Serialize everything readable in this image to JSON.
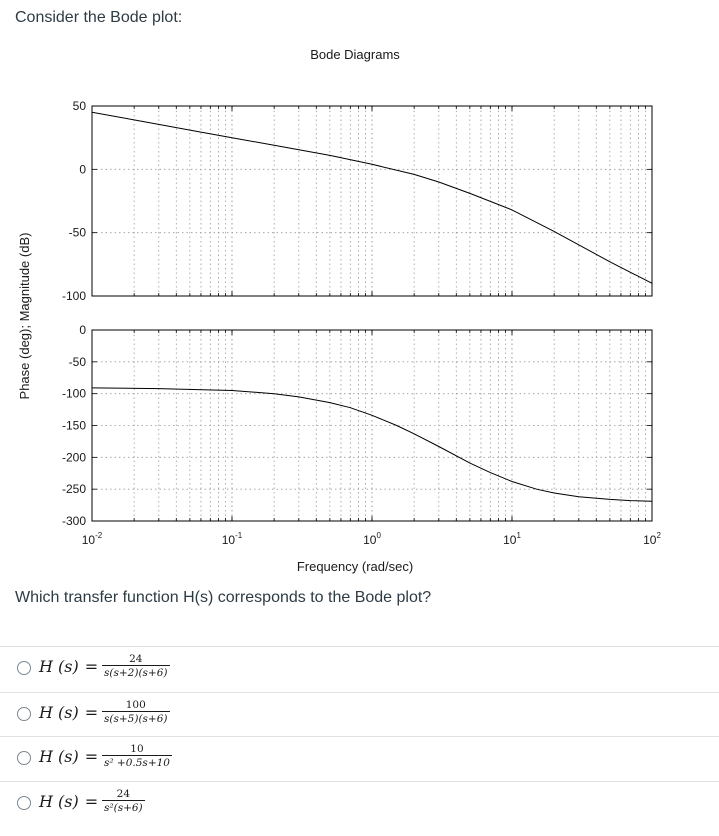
{
  "intro_text": "Consider the Bode plot:",
  "question_text": "Which transfer function H(s) corresponds to the Bode plot?",
  "chart_data": {
    "type": "line",
    "title": "Bode Diagrams",
    "xlabel": "Frequency (rad/sec)",
    "ylabel": "Phase (deg); Magnitude (dB)",
    "xscale": "log",
    "xlim": [
      0.01,
      100
    ],
    "x_tick_labels": [
      {
        "base": "10",
        "exp": "-2"
      },
      {
        "base": "10",
        "exp": "-1"
      },
      {
        "base": "10",
        "exp": "0"
      },
      {
        "base": "10",
        "exp": "1"
      },
      {
        "base": "10",
        "exp": "2"
      }
    ],
    "grid": true,
    "panels": [
      {
        "name": "magnitude",
        "ylim": [
          -100,
          50
        ],
        "yticks": [
          50,
          0,
          -50,
          -100
        ],
        "ytick_labels": [
          "50",
          "0",
          "-50",
          "-100"
        ],
        "series": [
          {
            "x": [
              0.01,
              0.02,
              0.05,
              0.1,
              0.2,
              0.5,
              1,
              2,
              3,
              5,
              10,
              20,
              50,
              100
            ],
            "y": [
              45,
              39,
              31,
              25,
              19,
              11,
              4,
              -4,
              -10,
              -19,
              -32,
              -49,
              -73,
              -90
            ]
          }
        ]
      },
      {
        "name": "phase",
        "ylim": [
          -300,
          0
        ],
        "yticks": [
          0,
          -50,
          -100,
          -150,
          -200,
          -250,
          -300
        ],
        "ytick_labels": [
          "0",
          "-50",
          "-100",
          "-150",
          "-200",
          "-250",
          "-300"
        ],
        "series": [
          {
            "x": [
              0.01,
              0.03,
              0.1,
              0.2,
              0.3,
              0.5,
              0.7,
              1,
              1.5,
              2,
              3,
              5,
              7,
              10,
              15,
              20,
              30,
              50,
              70,
              100
            ],
            "y": [
              -91,
              -92,
              -95,
              -100,
              -105,
              -114,
              -122,
              -134,
              -150,
              -163,
              -183,
              -209,
              -224,
              -238,
              -250,
              -256,
              -262,
              -266,
              -268,
              -269
            ]
          }
        ]
      }
    ]
  },
  "options": [
    {
      "lhs": "H (s)",
      "eq": "=",
      "num": "24",
      "den": "s(s+2)(s+6)"
    },
    {
      "lhs": "H (s)",
      "eq": "=",
      "num": "100",
      "den": "s(s+5)(s+6)"
    },
    {
      "lhs": "H (s)",
      "eq": "=",
      "num": "10",
      "den": "s² +0.5s+10"
    },
    {
      "lhs": "H (s)",
      "eq": "=",
      "num": "24",
      "den": "s²(s+6)"
    }
  ],
  "colors": {
    "text": "#2d3b45",
    "axis": "#000000",
    "grid": "#9a9a9a",
    "divider": "#dfe3e6"
  }
}
